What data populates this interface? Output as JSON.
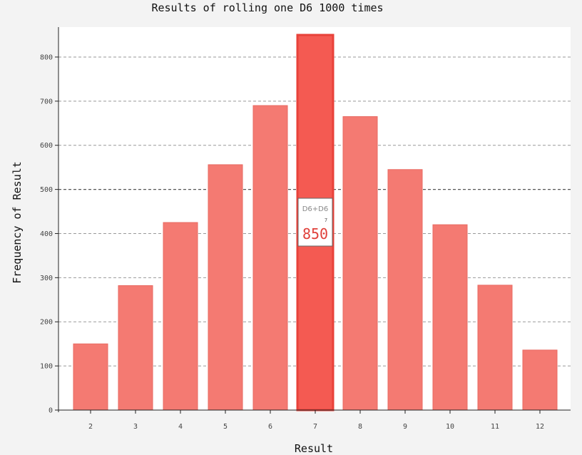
{
  "chart_data": {
    "type": "bar",
    "title": "Results of rolling one D6 1000 times",
    "xlabel": "Result",
    "ylabel": "Frequency of Result",
    "categories": [
      "2",
      "3",
      "4",
      "5",
      "6",
      "7",
      "8",
      "9",
      "10",
      "11",
      "12"
    ],
    "series": [
      {
        "name": "D6+D6",
        "values": [
          150,
          282,
          425,
          556,
          690,
          850,
          665,
          545,
          420,
          283,
          136
        ]
      }
    ],
    "yticks": [
      0,
      100,
      200,
      300,
      400,
      500,
      600,
      700,
      800
    ],
    "ylim": [
      0,
      850
    ],
    "grid": "horizontal dashed",
    "highlighted": {
      "category": "7",
      "series": "D6+D6",
      "value": "850"
    },
    "colors": {
      "bar": "#f47a72",
      "bar_highlight": "#f45a52",
      "bar_highlight_border": "#e8423a"
    }
  }
}
